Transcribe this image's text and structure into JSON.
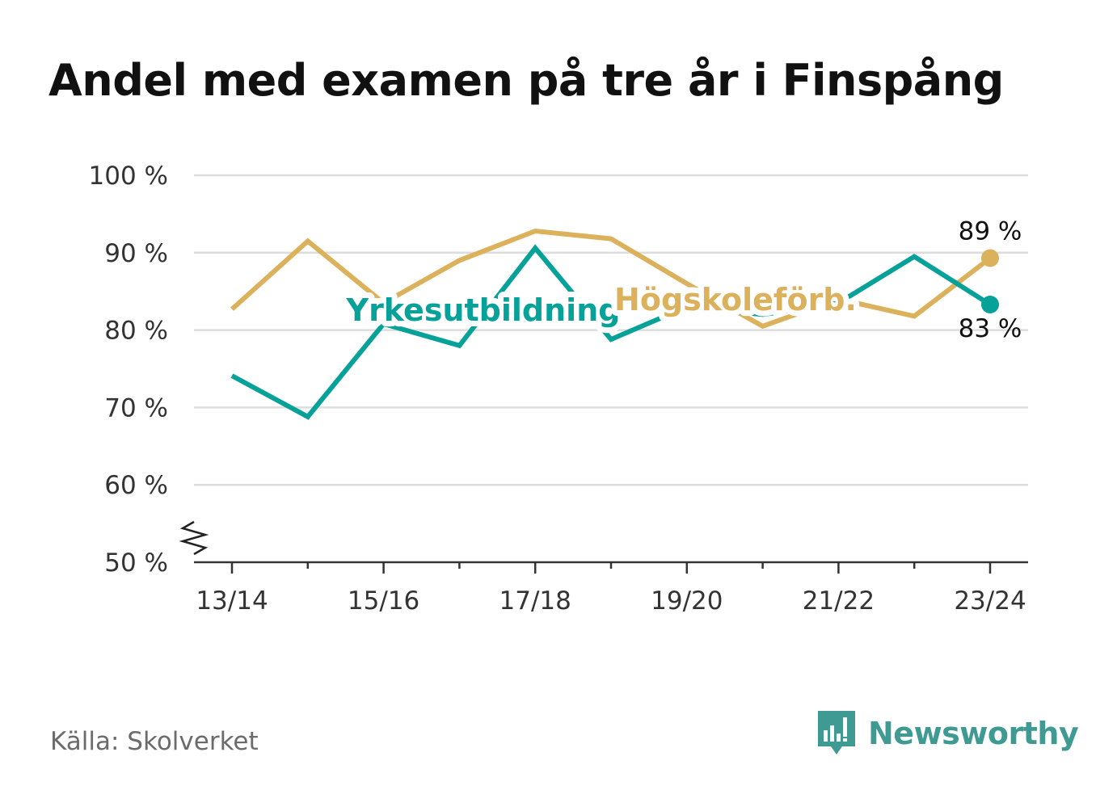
{
  "title": "Andel med examen på tre år i Finspång",
  "source": "Källa: Skolverket",
  "logo": {
    "name": "Newsworthy",
    "icon": "bar-chart-speech-bubble-icon",
    "color": "#3f9a93"
  },
  "chart_data": {
    "type": "line",
    "title": "Andel med examen på tre år i Finspång",
    "xlabel": "",
    "ylabel": "",
    "x": [
      "13/14",
      "14/15",
      "15/16",
      "16/17",
      "17/18",
      "18/19",
      "19/20",
      "20/21",
      "21/22",
      "22/23",
      "23/24"
    ],
    "x_tick_labels": [
      "13/14",
      "15/16",
      "17/18",
      "19/20",
      "21/22",
      "23/24"
    ],
    "ylim": [
      50,
      100
    ],
    "y_ticks": [
      50,
      60,
      70,
      80,
      90,
      100
    ],
    "y_tick_labels": [
      "50 %",
      "60 %",
      "70 %",
      "80 %",
      "90 %",
      "100 %"
    ],
    "y_axis_break": true,
    "grid": true,
    "series": [
      {
        "name": "Högskoleförb.",
        "color": "#dbb15c",
        "values": [
          82.7,
          91.5,
          83.5,
          89.0,
          92.8,
          91.8,
          86.0,
          80.5,
          84.0,
          81.8,
          89.3
        ],
        "end_label": "89 %"
      },
      {
        "name": "Yrkesutbildning",
        "color": "#06a198",
        "values": [
          74.1,
          68.8,
          80.8,
          78.0,
          90.6,
          78.8,
          83.0,
          82.0,
          83.5,
          89.5,
          83.3
        ],
        "end_label": "83 %"
      }
    ]
  }
}
